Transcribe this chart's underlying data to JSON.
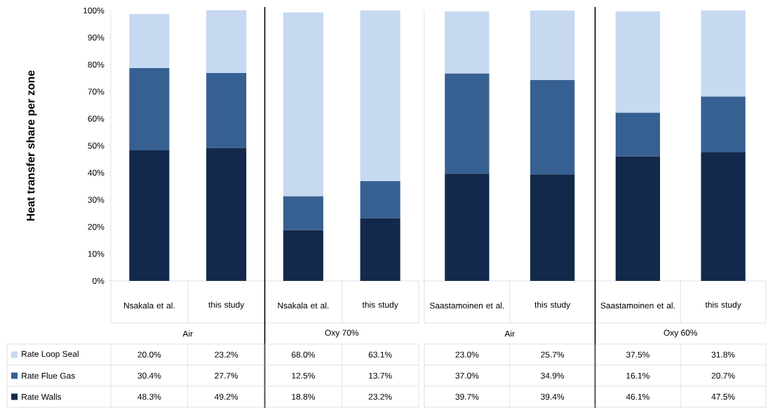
{
  "chart_data": [
    {
      "type": "bar",
      "stacked": true,
      "ylabel": "Heat transfer share per zone",
      "categories": [
        "Nsakala et al.",
        "this study",
        "Nsakala et al.",
        "this study"
      ],
      "annotations": [
        "Air",
        "Oxy 70%"
      ],
      "ylim": [
        0,
        100
      ],
      "yticks": [
        {
          "value": 0,
          "label": "0%"
        },
        {
          "value": 10,
          "label": "10%"
        },
        {
          "value": 20,
          "label": "20%"
        },
        {
          "value": 30,
          "label": "30%"
        },
        {
          "value": 40,
          "label": "40%"
        },
        {
          "value": 50,
          "label": "50%"
        },
        {
          "value": 60,
          "label": "60%"
        },
        {
          "value": 70,
          "label": "70%"
        },
        {
          "value": 80,
          "label": "80%"
        },
        {
          "value": 90,
          "label": "90%"
        },
        {
          "value": 100,
          "label": "100%"
        }
      ],
      "legend": "bottom left",
      "series": [
        {
          "name": "Rate Walls",
          "color": "#13294b",
          "values": [
            48.3,
            49.2,
            18.8,
            23.2
          ],
          "value_labels": [
            "48.3%",
            "49.2%",
            "18.8%",
            "23.2%"
          ]
        },
        {
          "name": "Rate Flue Gas",
          "color": "#376092",
          "values": [
            30.4,
            27.7,
            12.5,
            13.7
          ],
          "value_labels": [
            "30.4%",
            "27.7%",
            "12.5%",
            "13.7%"
          ]
        },
        {
          "name": "Rate Loop Seal",
          "color": "#c6d9f0",
          "values": [
            20.0,
            23.2,
            68.0,
            63.1
          ],
          "value_labels": [
            "20.0%",
            "23.2%",
            "68.0%",
            "63.1%"
          ]
        }
      ]
    },
    {
      "type": "bar",
      "stacked": true,
      "categories": [
        "Saastamoinen et al.",
        "this study",
        "Saastamoinen et al.",
        "this study"
      ],
      "annotations": [
        "Air",
        "Oxy 60%"
      ],
      "ylim": [
        0,
        100
      ],
      "yticks": [
        0,
        10,
        20,
        30,
        40,
        50,
        60,
        70,
        80,
        90,
        100
      ],
      "tick_labels": "x",
      "series": [
        {
          "color": "#13294b",
          "values": [
            39.7,
            39.4,
            46.1,
            47.5
          ],
          "value_labels": [
            "39.7%",
            "39.4%",
            "46.1%",
            "47.5%"
          ]
        },
        {
          "color": "#376092",
          "values": [
            37.0,
            34.9,
            16.1,
            20.7
          ],
          "value_labels": [
            "37.0%",
            "34.9%",
            "16.1%",
            "20.7%"
          ]
        },
        {
          "color": "#c6d9f0",
          "values": [
            23.0,
            25.7,
            37.5,
            31.8
          ],
          "value_labels": [
            "23.0%",
            "25.7%",
            "37.5%",
            "31.8%"
          ]
        }
      ]
    }
  ]
}
